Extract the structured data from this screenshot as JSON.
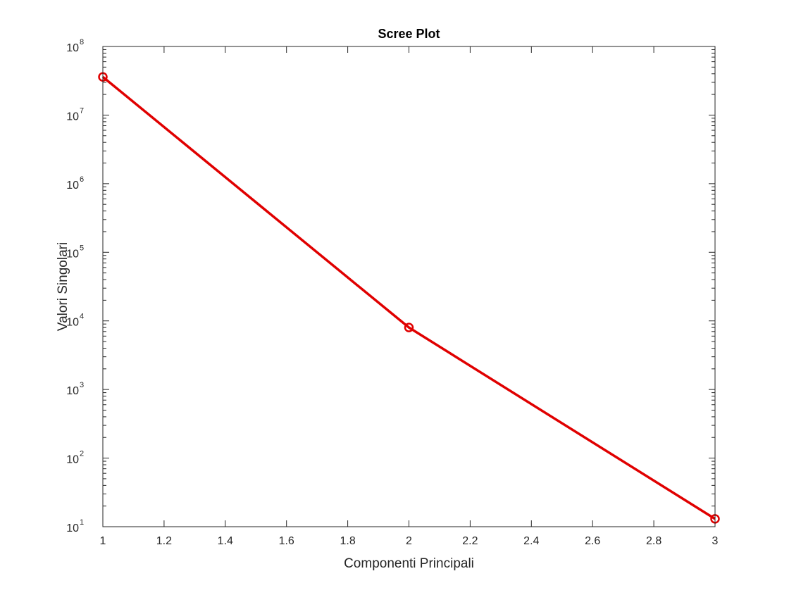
{
  "chart_data": {
    "type": "line",
    "title": "Scree Plot",
    "xlabel": "Componenti Principali",
    "ylabel": "Valori Singolari",
    "xlim": [
      1,
      3
    ],
    "ylim": [
      10,
      100000000
    ],
    "yscale": "log",
    "grid": false,
    "x_ticks": [
      "1",
      "1.2",
      "1.4",
      "1.6",
      "1.8",
      "2",
      "2.2",
      "2.4",
      "2.6",
      "2.8",
      "3"
    ],
    "y_ticks": [
      {
        "base": "10",
        "exp": "1"
      },
      {
        "base": "10",
        "exp": "2"
      },
      {
        "base": "10",
        "exp": "3"
      },
      {
        "base": "10",
        "exp": "4"
      },
      {
        "base": "10",
        "exp": "5"
      },
      {
        "base": "10",
        "exp": "6"
      },
      {
        "base": "10",
        "exp": "7"
      },
      {
        "base": "10",
        "exp": "8"
      }
    ],
    "series": [
      {
        "x": [
          1,
          2,
          3
        ],
        "y": [
          36000000,
          8000,
          13
        ],
        "color": "#e00000",
        "marker": "circle"
      }
    ]
  }
}
